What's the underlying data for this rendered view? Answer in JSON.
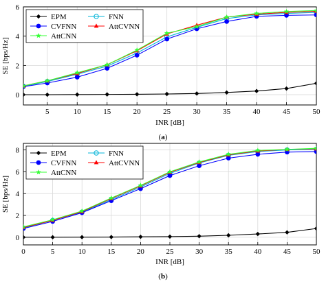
{
  "colors": {
    "EPM": "#000000",
    "FNN": "#00b4d8",
    "CVFNN": "#0000ff",
    "AttCVNN": "#ff0000",
    "AttCNN": "#33ff33",
    "grid": "#d9d9d9"
  },
  "chart_data": [
    {
      "type": "line",
      "caption": "(a)",
      "xlabel": "INR [dB]",
      "ylabel": "SE [bps/Hz]",
      "xlim": [
        1,
        50
      ],
      "ylim": [
        -0.7,
        6
      ],
      "xticks": [
        5,
        10,
        15,
        20,
        25,
        30,
        35,
        40,
        45,
        50
      ],
      "yticks": [
        0,
        2,
        4,
        6
      ],
      "grid": true,
      "legend_position": "top-left",
      "x": [
        1,
        5,
        10,
        15,
        20,
        25,
        30,
        35,
        40,
        45,
        50
      ],
      "series": [
        {
          "name": "EPM",
          "marker": "diamond",
          "values": [
            0.0,
            0.0,
            0.01,
            0.02,
            0.03,
            0.05,
            0.08,
            0.15,
            0.25,
            0.42,
            0.78
          ]
        },
        {
          "name": "FNN",
          "marker": "circle",
          "values": [
            0.58,
            0.9,
            1.4,
            1.95,
            2.85,
            3.95,
            4.6,
            5.2,
            5.45,
            5.55,
            5.62
          ]
        },
        {
          "name": "CVFNN",
          "marker": "dot",
          "values": [
            0.55,
            0.8,
            1.2,
            1.8,
            2.7,
            3.8,
            4.5,
            5.0,
            5.35,
            5.42,
            5.45
          ]
        },
        {
          "name": "AttCVNN",
          "marker": "triangle",
          "values": [
            0.6,
            0.95,
            1.45,
            2.05,
            3.0,
            4.15,
            4.75,
            5.3,
            5.5,
            5.62,
            5.7
          ]
        },
        {
          "name": "AttCNN",
          "marker": "star",
          "values": [
            0.6,
            0.95,
            1.5,
            2.05,
            3.05,
            4.2,
            4.65,
            5.3,
            5.55,
            5.68,
            5.75
          ]
        }
      ]
    },
    {
      "type": "line",
      "caption": "(b)",
      "xlabel": "INR [dB]",
      "ylabel": "SE [bps/Hz]",
      "xlim": [
        0,
        50
      ],
      "ylim": [
        -0.7,
        8.6
      ],
      "xticks": [
        0,
        5,
        10,
        15,
        20,
        25,
        30,
        35,
        40,
        45,
        50
      ],
      "yticks": [
        0,
        2,
        4,
        6,
        8
      ],
      "grid": true,
      "legend_position": "top-left",
      "x": [
        0,
        5,
        10,
        15,
        20,
        25,
        30,
        35,
        40,
        45,
        50
      ],
      "series": [
        {
          "name": "EPM",
          "marker": "diamond",
          "values": [
            0.0,
            0.0,
            0.01,
            0.02,
            0.04,
            0.06,
            0.1,
            0.18,
            0.3,
            0.45,
            0.8
          ]
        },
        {
          "name": "FNN",
          "marker": "circle",
          "values": [
            0.85,
            1.55,
            2.3,
            3.45,
            4.6,
            5.85,
            6.8,
            7.5,
            7.85,
            8.0,
            8.05
          ]
        },
        {
          "name": "CVFNN",
          "marker": "dot",
          "values": [
            0.8,
            1.45,
            2.25,
            3.35,
            4.45,
            5.65,
            6.55,
            7.25,
            7.6,
            7.8,
            7.85
          ]
        },
        {
          "name": "AttCVNN",
          "marker": "triangle",
          "values": [
            0.9,
            1.55,
            2.35,
            3.55,
            4.7,
            5.95,
            6.85,
            7.55,
            7.9,
            8.05,
            8.1
          ]
        },
        {
          "name": "AttCNN",
          "marker": "star",
          "values": [
            0.95,
            1.6,
            2.4,
            3.6,
            4.75,
            6.0,
            6.9,
            7.6,
            7.95,
            8.05,
            8.15
          ]
        }
      ]
    }
  ]
}
